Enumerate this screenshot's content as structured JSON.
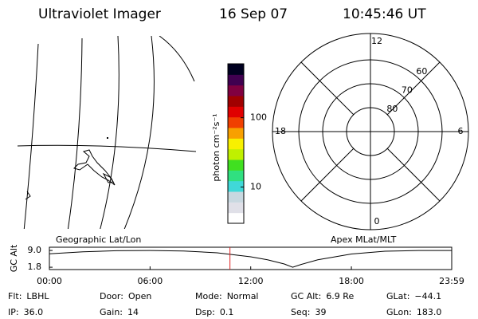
{
  "header": {
    "title": "Ultraviolet Imager",
    "date": "16 Sep 07",
    "time": "10:45:46 UT"
  },
  "colorbar": {
    "label": "photon cm⁻²s⁻¹",
    "scale": "log",
    "lim": [
      3,
      600
    ],
    "ticks": [
      10,
      100
    ],
    "colors": [
      "#ffffff",
      "#e0e0e8",
      "#c8d8e0",
      "#40d8d8",
      "#30e080",
      "#40e020",
      "#c0f000",
      "#f8f000",
      "#f8a000",
      "#f04000",
      "#e00000",
      "#a00000",
      "#800040",
      "#400050",
      "#000020"
    ]
  },
  "polar": {
    "mlt_ticks": [
      0,
      6,
      12,
      18
    ],
    "lat_ticks": [
      60,
      70,
      80
    ],
    "rlim": [
      90,
      49
    ]
  },
  "map_label": "Geographic Lat/Lon",
  "polar_label": "Apex MLat/MLT",
  "plot": {
    "ylabel": "GC Alt",
    "ylim": [
      0.8,
      10.4
    ],
    "yticks": [
      {
        "value": 9,
        "label": "9.0"
      },
      1.8
    ],
    "xlim": [
      0,
      23.98
    ],
    "xticks": [
      {
        "value": 0,
        "label": "00:00"
      },
      {
        "value": 6,
        "label": "06:00"
      },
      {
        "value": 12,
        "label": "12:00"
      },
      {
        "value": 18,
        "label": "18:00"
      },
      {
        "value": 23.98,
        "label": "23:59"
      }
    ],
    "x": [
      0,
      2,
      4,
      6,
      8,
      10,
      12,
      13,
      14,
      14.5,
      15,
      16,
      18,
      20,
      22,
      23.98
    ],
    "values": [
      7.6,
      8.4,
      8.9,
      9.0,
      8.8,
      8.0,
      6.3,
      5.0,
      3.2,
      1.8,
      3.0,
      5.0,
      7.5,
      8.7,
      9.0,
      9.0
    ],
    "color": "#000000",
    "marker": 10.763,
    "marker_color": "#e02020"
  },
  "info": [
    [
      {
        "label": "Flt:",
        "value": "LBHL"
      },
      {
        "label": "Door:",
        "value": "Open"
      },
      {
        "label": "Mode:",
        "value": "Normal"
      },
      {
        "label": "GC Alt:",
        "value": "6.9 Re"
      },
      {
        "label": "GLat:",
        "value": "−44.1"
      }
    ],
    [
      {
        "label": "IP:",
        "value": "36.0"
      },
      {
        "label": "Gain:",
        "value": "14"
      },
      {
        "label": "Dsp:",
        "value": "0.1"
      },
      {
        "label": "Seq:",
        "value": "39"
      },
      {
        "label": "GLon:",
        "value": "183.0"
      }
    ]
  ]
}
